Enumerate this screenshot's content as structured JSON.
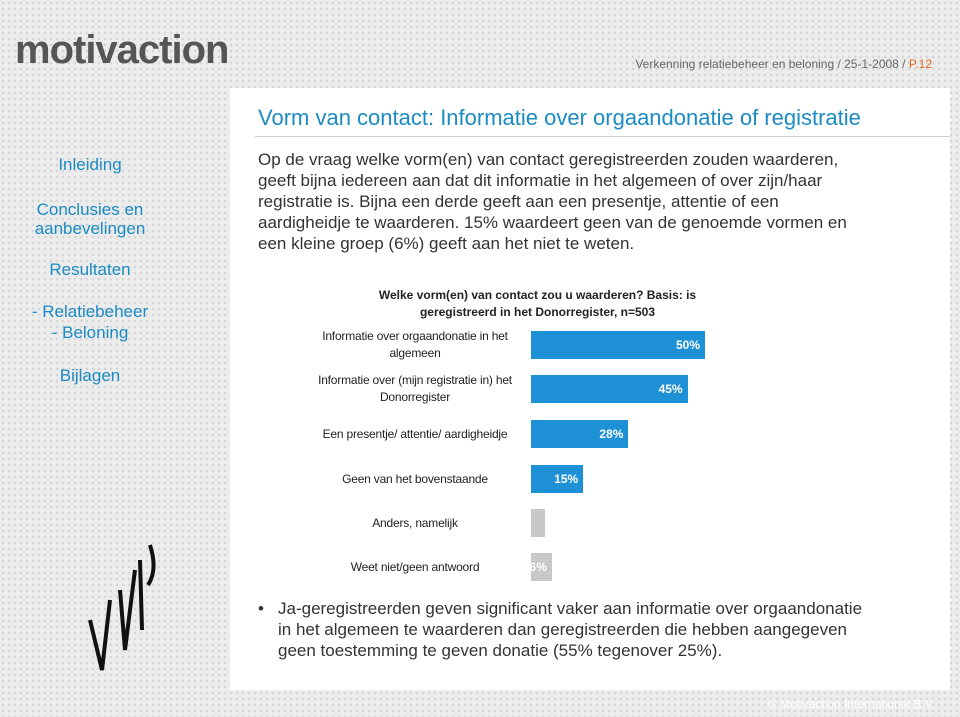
{
  "header": {
    "logo": "motivaction",
    "breadcrumb": "Verkenning relatiebeheer en beloning / 25-1-2008 /",
    "page": "P.12"
  },
  "nav": [
    "Inleiding",
    "Conclusies en aanbevelingen",
    "Resultaten",
    "- Relatiebeheer",
    "- Beloning",
    "Bijlagen"
  ],
  "title": "Vorm van contact: Informatie over orgaandonatie of registratie",
  "intro": "Op de vraag welke vorm(en) van contact geregistreerden zouden waarderen, geeft bijna iedereen aan dat dit informatie in het algemeen of over zijn/haar registratie is. Bijna een derde geeft aan een presentje, attentie of een aardigheidje te waarderen. 15% waardeert geen van de genoemde vormen en een kleine groep (6%) geeft aan het niet te weten.",
  "chart_data": {
    "type": "bar",
    "orientation": "horizontal",
    "title": "Welke vorm(en) van contact zou u waarderen? Basis: is geregistreerd in het Donorregister, n=503",
    "categories": [
      "Informatie over orgaandonatie in het algemeen",
      "Informatie over (mijn registratie in) het Donorregister",
      "Een presentje/ attentie/ aardigheidje",
      "Geen van het bovenstaande",
      "Anders, namelijk",
      "Weet niet/geen antwoord"
    ],
    "values": [
      50,
      45,
      28,
      15,
      4,
      6
    ],
    "value_labels": [
      "50%",
      "45%",
      "28%",
      "15%",
      null,
      "6%"
    ],
    "colors": [
      "#1e90d6",
      "#1e90d6",
      "#1e90d6",
      "#1e90d6",
      "#c8c8c8",
      "#c8c8c8"
    ],
    "xlim": [
      0,
      50
    ]
  },
  "bullet": "Ja-geregistreerden geven significant vaker aan informatie over orgaandonatie in het algemeen te waarderen dan geregistreerden die hebben aangegeven geen toestemming te geven donatie (55% tegenover 25%).",
  "footer": "© Motivaction International B.V."
}
